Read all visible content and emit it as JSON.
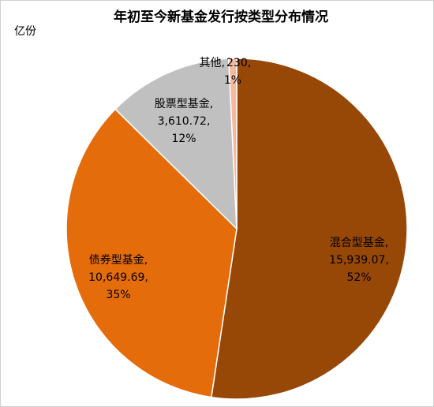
{
  "chart_data": {
    "type": "pie",
    "title": "年初至今新基金发行按类型分布情况",
    "unit_label": "亿份",
    "categories": [
      "混合型基金,",
      "债券型基金,",
      "股票型基金,",
      "其他,"
    ],
    "values": [
      15939.07,
      10649.69,
      3610.72,
      230
    ],
    "value_labels": [
      "15,939.07,",
      "10,649.69,",
      "3,610.72,",
      "230,"
    ],
    "percentages": [
      {
        "value": 52,
        "label": "52%"
      },
      {
        "value": 35,
        "label": "35%"
      },
      {
        "value": 12,
        "label": "12%"
      },
      {
        "value": 1,
        "label": "1%"
      }
    ],
    "colors": [
      "#974706",
      "#E46C0A",
      "#C0C0C0",
      "#F4B9A0"
    ]
  }
}
